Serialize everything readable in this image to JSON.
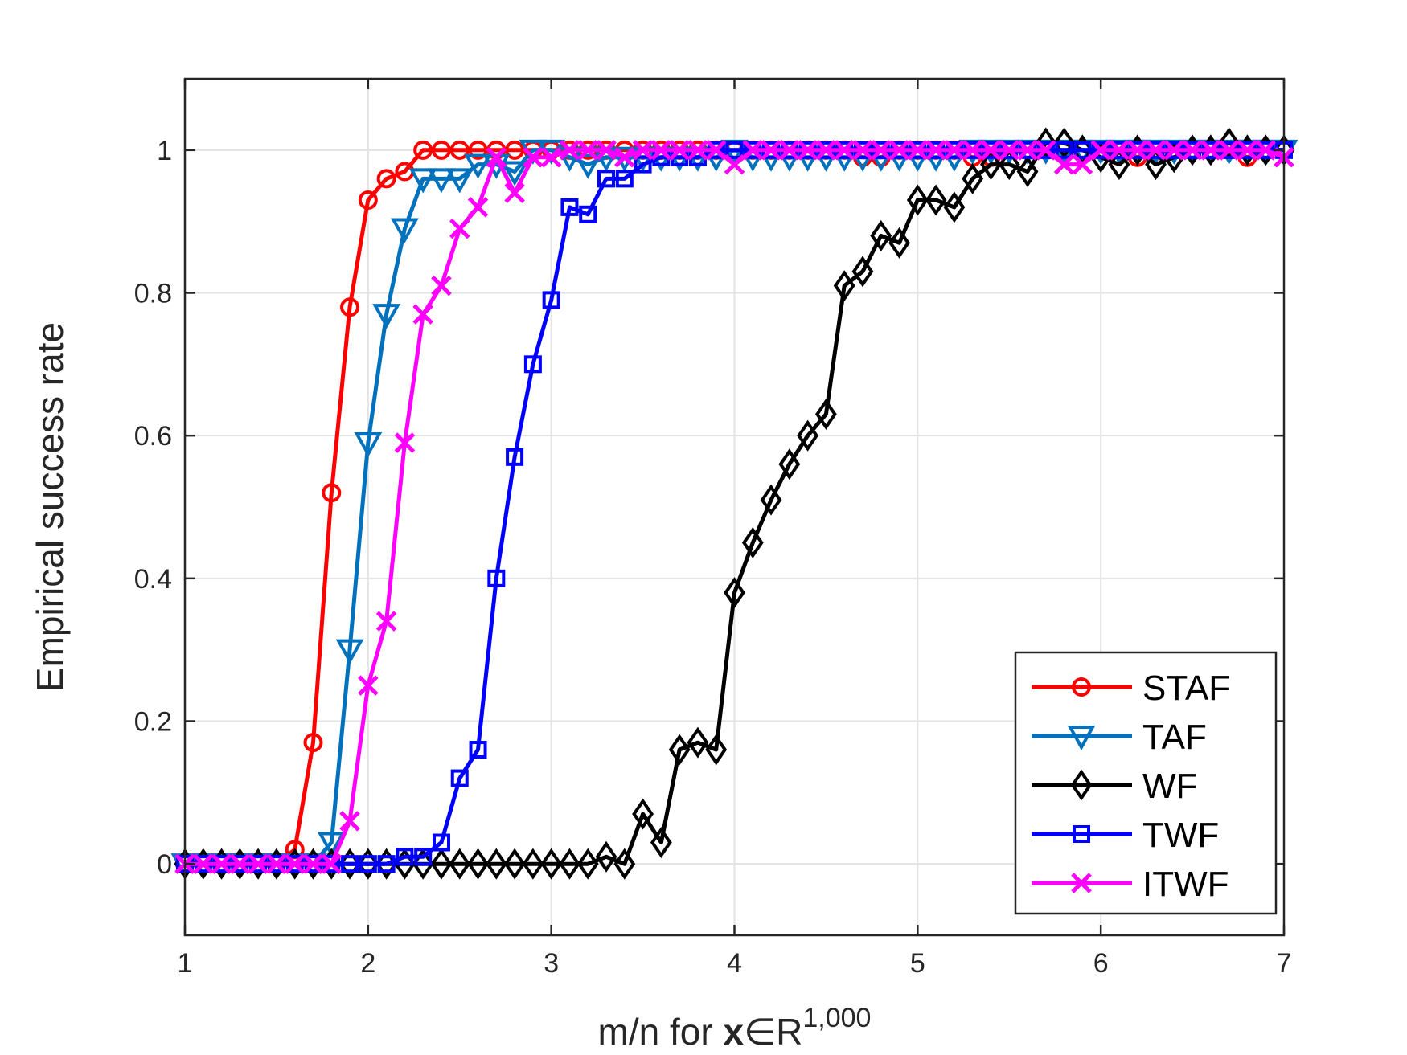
{
  "chart_data": {
    "type": "line",
    "title": "",
    "xlabel": {
      "prefix": "m/n for ",
      "bold": "x",
      "symbol": "∈R",
      "superscript": "1,000"
    },
    "ylabel": "Empirical success rate",
    "xlim": [
      1,
      7
    ],
    "ylim": [
      -0.1,
      1.1
    ],
    "xticks": [
      1,
      2,
      3,
      4,
      5,
      6,
      7
    ],
    "yticks": [
      0,
      0.2,
      0.4,
      0.6,
      0.8,
      1
    ],
    "ytick_labels": [
      "0",
      "0.2",
      "0.4",
      "0.6",
      "0.8",
      "1"
    ],
    "grid": true,
    "legend_position": "bottom-right",
    "series": [
      {
        "name": "STAF",
        "color": "#ff0000",
        "marker": "circle",
        "x": [
          1,
          1.1,
          1.2,
          1.3,
          1.4,
          1.5,
          1.6,
          1.7,
          1.8,
          1.9,
          2.0,
          2.1,
          2.2,
          2.3,
          2.4,
          2.5,
          2.6,
          2.7,
          2.8,
          2.9,
          3.0,
          3.1,
          3.2,
          3.3,
          3.4,
          3.5,
          3.6,
          3.7,
          3.8,
          3.9,
          4.0,
          4.1,
          4.2,
          4.3,
          4.4,
          4.5,
          4.6,
          4.7,
          4.8,
          4.9,
          5.0,
          5.1,
          5.2,
          5.3,
          5.4,
          5.5,
          5.6,
          5.7,
          5.8,
          5.9,
          6.0,
          6.1,
          6.2,
          6.3,
          6.4,
          6.5,
          6.6,
          6.7,
          6.8,
          6.9,
          7.0
        ],
        "y": [
          0,
          0,
          0,
          0,
          0,
          0,
          0.02,
          0.17,
          0.52,
          0.78,
          0.93,
          0.96,
          0.97,
          1,
          1,
          1,
          1,
          1,
          1,
          1,
          1,
          1,
          1,
          1,
          1,
          1,
          1,
          1,
          1,
          1,
          1,
          1,
          1,
          1,
          1,
          1,
          1,
          0.99,
          0.99,
          1,
          1,
          1,
          1,
          0.99,
          0.99,
          1,
          1,
          1,
          1,
          1,
          1,
          1,
          0.99,
          1,
          1,
          1,
          1,
          1,
          0.99,
          1,
          1
        ]
      },
      {
        "name": "TAF",
        "color": "#0072bd",
        "marker": "triangle-down",
        "x": [
          1,
          1.1,
          1.2,
          1.3,
          1.4,
          1.5,
          1.6,
          1.7,
          1.8,
          1.9,
          2.0,
          2.1,
          2.2,
          2.3,
          2.4,
          2.5,
          2.6,
          2.7,
          2.8,
          2.9,
          3.0,
          3.1,
          3.2,
          3.3,
          3.4,
          3.5,
          3.6,
          3.7,
          3.8,
          3.9,
          4.0,
          4.1,
          4.2,
          4.3,
          4.4,
          4.5,
          4.6,
          4.7,
          4.8,
          4.9,
          5.0,
          5.1,
          5.2,
          5.3,
          5.4,
          5.5,
          5.6,
          5.7,
          5.8,
          5.9,
          6.0,
          6.1,
          6.2,
          6.3,
          6.4,
          6.5,
          6.6,
          6.7,
          6.8,
          6.9,
          7.0
        ],
        "y": [
          0,
          0,
          0,
          0,
          0,
          0,
          0,
          0,
          0.03,
          0.3,
          0.59,
          0.77,
          0.89,
          0.96,
          0.96,
          0.96,
          0.98,
          0.98,
          0.97,
          1,
          1,
          0.99,
          0.98,
          0.99,
          0.99,
          0.99,
          0.99,
          0.99,
          0.99,
          0.99,
          1,
          0.99,
          0.99,
          0.99,
          0.99,
          0.99,
          0.99,
          0.99,
          0.99,
          0.99,
          0.99,
          0.99,
          0.99,
          1,
          1,
          1,
          1,
          1,
          1,
          1,
          1,
          1,
          1,
          1,
          1,
          1,
          1,
          1,
          1,
          1,
          1
        ]
      },
      {
        "name": "WF",
        "color": "#000000",
        "marker": "diamond",
        "x": [
          1,
          1.1,
          1.2,
          1.3,
          1.4,
          1.5,
          1.6,
          1.7,
          1.8,
          1.9,
          2.0,
          2.1,
          2.2,
          2.3,
          2.4,
          2.5,
          2.6,
          2.7,
          2.8,
          2.9,
          3.0,
          3.1,
          3.2,
          3.3,
          3.4,
          3.5,
          3.6,
          3.7,
          3.8,
          3.9,
          4.0,
          4.1,
          4.2,
          4.3,
          4.4,
          4.5,
          4.6,
          4.7,
          4.8,
          4.9,
          5.0,
          5.1,
          5.2,
          5.3,
          5.4,
          5.5,
          5.6,
          5.7,
          5.8,
          5.9,
          6.0,
          6.1,
          6.2,
          6.3,
          6.4,
          6.5,
          6.6,
          6.7,
          6.8,
          6.9,
          7.0
        ],
        "y": [
          0,
          0,
          0,
          0,
          0,
          0,
          0,
          0,
          0,
          0,
          0,
          0,
          0,
          0,
          0,
          0,
          0,
          0,
          0,
          0,
          0,
          0,
          0,
          0.01,
          0,
          0.07,
          0.03,
          0.16,
          0.17,
          0.16,
          0.38,
          0.45,
          0.51,
          0.56,
          0.6,
          0.63,
          0.81,
          0.83,
          0.88,
          0.87,
          0.93,
          0.93,
          0.92,
          0.96,
          0.98,
          0.98,
          0.97,
          1.01,
          1.01,
          1,
          0.99,
          0.98,
          1,
          0.98,
          0.99,
          1,
          1,
          1.01,
          1,
          1,
          1
        ]
      },
      {
        "name": "TWF",
        "color": "#0000ff",
        "marker": "square",
        "x": [
          1,
          1.1,
          1.2,
          1.3,
          1.4,
          1.5,
          1.6,
          1.7,
          1.8,
          1.9,
          2.0,
          2.1,
          2.2,
          2.3,
          2.4,
          2.5,
          2.6,
          2.7,
          2.8,
          2.9,
          3.0,
          3.1,
          3.2,
          3.3,
          3.4,
          3.5,
          3.6,
          3.7,
          3.8,
          3.9,
          4.0,
          4.1,
          4.2,
          4.3,
          4.4,
          4.5,
          4.6,
          4.7,
          4.8,
          4.9,
          5.0,
          5.1,
          5.2,
          5.3,
          5.4,
          5.5,
          5.6,
          5.7,
          5.8,
          5.9,
          6.0,
          6.1,
          6.2,
          6.3,
          6.4,
          6.5,
          6.6,
          6.7,
          6.8,
          6.9,
          7.0
        ],
        "y": [
          0,
          0,
          0,
          0,
          0,
          0,
          0,
          0,
          0,
          0,
          0,
          0,
          0.01,
          0.01,
          0.03,
          0.12,
          0.16,
          0.4,
          0.57,
          0.7,
          0.79,
          0.92,
          0.91,
          0.96,
          0.96,
          0.98,
          0.99,
          0.99,
          0.99,
          1,
          1,
          1,
          1,
          1,
          1,
          1,
          1,
          1,
          1,
          1,
          1,
          1,
          1,
          1,
          1,
          1,
          1,
          1,
          1,
          1,
          1,
          1,
          1,
          1,
          1,
          1,
          1,
          1,
          1,
          1,
          1
        ]
      },
      {
        "name": "ITWF",
        "color": "#ff00ff",
        "marker": "x",
        "x": [
          1,
          1.1,
          1.2,
          1.3,
          1.4,
          1.5,
          1.6,
          1.7,
          1.8,
          1.9,
          2.0,
          2.1,
          2.2,
          2.3,
          2.4,
          2.5,
          2.6,
          2.7,
          2.8,
          2.9,
          3.0,
          3.1,
          3.2,
          3.3,
          3.4,
          3.5,
          3.6,
          3.7,
          3.8,
          3.9,
          4.0,
          4.1,
          4.2,
          4.3,
          4.4,
          4.5,
          4.6,
          4.7,
          4.8,
          4.9,
          5.0,
          5.1,
          5.2,
          5.3,
          5.4,
          5.5,
          5.6,
          5.7,
          5.8,
          5.9,
          6.0,
          6.1,
          6.2,
          6.3,
          6.4,
          6.5,
          6.6,
          6.7,
          6.8,
          6.9,
          7.0
        ],
        "y": [
          0,
          0,
          0,
          0,
          0,
          0,
          0,
          0,
          0,
          0.06,
          0.25,
          0.34,
          0.59,
          0.77,
          0.81,
          0.89,
          0.92,
          0.99,
          0.94,
          0.99,
          0.99,
          1,
          1,
          1,
          0.99,
          1,
          1,
          1,
          1,
          1,
          0.98,
          1,
          1,
          1,
          1,
          1,
          1,
          1,
          1,
          1,
          1,
          1,
          1,
          1,
          1,
          1,
          1,
          1,
          0.98,
          0.98,
          1,
          1,
          1,
          1,
          1,
          1,
          1,
          1,
          1,
          1,
          0.99
        ]
      }
    ]
  }
}
